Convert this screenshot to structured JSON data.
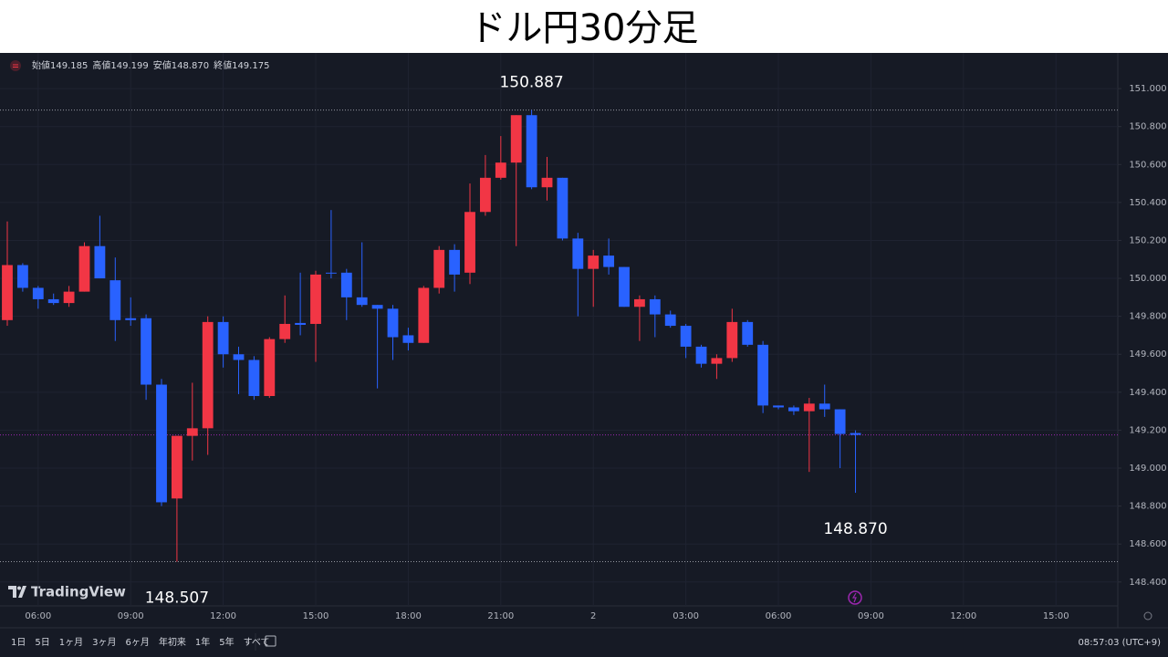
{
  "title": "ドル円30分足",
  "legend": [
    {
      "label": "始値",
      "value": "149.185"
    },
    {
      "label": "高値",
      "value": "149.199"
    },
    {
      "label": "安値",
      "value": "148.870"
    },
    {
      "label": "終値",
      "value": "149.175"
    }
  ],
  "chart_data": {
    "type": "candlestick",
    "open": [
      149.78,
      150.07,
      149.95,
      149.89,
      149.87,
      149.93,
      150.17,
      149.99,
      149.79,
      149.79,
      149.44,
      148.84,
      149.17,
      149.21,
      149.77,
      149.6,
      149.57,
      149.38,
      149.68,
      149.765,
      149.76,
      150.03,
      150.03,
      149.9,
      149.86,
      149.84,
      149.7,
      149.66,
      149.95,
      150.15,
      150.03,
      150.35,
      150.53,
      150.61,
      150.86,
      150.48,
      150.53,
      150.21,
      150.05,
      150.12,
      150.06,
      149.85,
      149.89,
      149.81,
      149.75,
      149.64,
      149.55,
      149.58,
      149.77,
      149.65,
      149.33,
      149.32,
      149.3,
      149.34,
      149.31,
      149.185
    ],
    "high": [
      150.3,
      150.08,
      149.96,
      149.92,
      149.96,
      150.19,
      150.33,
      150.11,
      149.9,
      149.81,
      149.47,
      149.17,
      149.45,
      149.8,
      149.8,
      149.64,
      149.59,
      149.69,
      149.91,
      150.03,
      150.04,
      150.36,
      150.05,
      150.19,
      149.86,
      149.86,
      149.74,
      149.96,
      150.17,
      150.18,
      150.5,
      150.65,
      150.75,
      150.86,
      150.887,
      150.64,
      150.53,
      150.24,
      150.15,
      150.21,
      150.06,
      149.91,
      149.91,
      149.83,
      149.76,
      149.65,
      149.6,
      149.84,
      149.78,
      149.67,
      149.33,
      149.33,
      149.37,
      149.44,
      149.31,
      149.199
    ],
    "low": [
      149.75,
      149.93,
      149.84,
      149.86,
      149.85,
      149.93,
      150.0,
      149.67,
      149.75,
      149.36,
      148.8,
      148.507,
      149.04,
      149.07,
      149.53,
      149.39,
      149.36,
      149.37,
      149.66,
      149.7,
      149.56,
      150.0,
      149.78,
      149.85,
      149.42,
      149.57,
      149.62,
      149.66,
      149.92,
      149.93,
      149.97,
      150.33,
      150.52,
      150.17,
      150.47,
      150.41,
      150.2,
      149.8,
      149.85,
      150.02,
      149.85,
      149.67,
      149.69,
      149.74,
      149.58,
      149.53,
      149.47,
      149.56,
      149.64,
      149.29,
      149.31,
      149.28,
      148.98,
      149.27,
      149.0,
      148.87
    ],
    "close": [
      150.07,
      149.95,
      149.89,
      149.87,
      149.93,
      150.17,
      150.0,
      149.78,
      149.78,
      149.44,
      148.82,
      149.17,
      149.21,
      149.77,
      149.6,
      149.57,
      149.38,
      149.68,
      149.76,
      149.755,
      150.02,
      150.03,
      149.9,
      149.86,
      149.84,
      149.69,
      149.66,
      149.95,
      150.15,
      150.02,
      150.35,
      150.53,
      150.61,
      150.86,
      150.48,
      150.53,
      150.21,
      150.05,
      150.12,
      150.06,
      149.85,
      149.89,
      149.81,
      149.75,
      149.64,
      149.55,
      149.58,
      149.77,
      149.65,
      149.33,
      149.32,
      149.3,
      149.34,
      149.31,
      149.18,
      149.175
    ],
    "up_color": "#f23645",
    "down_color": "#2962ff",
    "last_price_color": "#9c27b0",
    "ylim": [
      148.274,
      151.188
    ],
    "yticks": [
      {
        "value": 148.4,
        "label": "148.400"
      },
      {
        "value": 148.6,
        "label": "148.600"
      },
      {
        "value": 148.8,
        "label": "148.800"
      },
      {
        "value": 149.0,
        "label": "149.000"
      },
      {
        "value": 149.2,
        "label": "149.200"
      },
      {
        "value": 149.4,
        "label": "149.400"
      },
      {
        "value": 149.6,
        "label": "149.600"
      },
      {
        "value": 149.8,
        "label": "149.800"
      },
      {
        "value": 150.0,
        "label": "150.000"
      },
      {
        "value": 150.2,
        "label": "150.200"
      },
      {
        "value": 150.4,
        "label": "150.400"
      },
      {
        "value": 150.6,
        "label": "150.600"
      },
      {
        "value": 150.8,
        "label": "150.800"
      },
      {
        "value": 151.0,
        "label": "151.000"
      }
    ],
    "xlim": [
      -0.473,
      72.01
    ],
    "xticks": [
      {
        "value": 2,
        "label": "06:00"
      },
      {
        "value": 8,
        "label": "09:00"
      },
      {
        "value": 14,
        "label": "12:00"
      },
      {
        "value": 20,
        "label": "15:00"
      },
      {
        "value": 26,
        "label": "18:00"
      },
      {
        "value": 32,
        "label": "21:00"
      },
      {
        "value": 38,
        "label": "2"
      },
      {
        "value": 44,
        "label": "03:00"
      },
      {
        "value": 50,
        "label": "06:00"
      },
      {
        "value": 56,
        "label": "09:00"
      },
      {
        "value": 62,
        "label": "12:00"
      },
      {
        "value": 68,
        "label": "15:00"
      }
    ],
    "levels": [
      150.887,
      148.507
    ],
    "annotations": [
      150.887,
      148.507,
      {
        "value": 148.87,
        "label": "148.870"
      }
    ],
    "grid": true
  },
  "branding": "TradingView",
  "toolbar": {
    "ranges": [
      "1日",
      "5日",
      "1ヶ月",
      "3ヶ月",
      "6ヶ月",
      "年初来",
      "1年",
      "5年",
      "すべて"
    ],
    "clock": "08:57:03 (UTC+9)"
  }
}
